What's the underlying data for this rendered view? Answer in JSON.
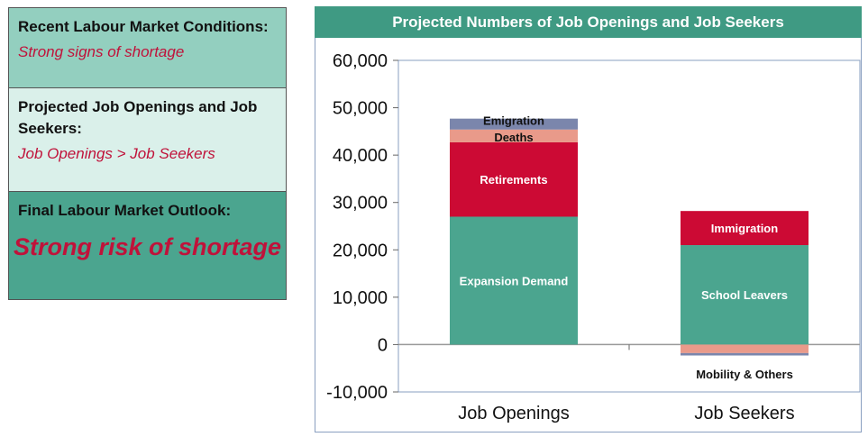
{
  "panels": {
    "recent": {
      "title": "Recent Labour Market Conditions:",
      "value": "Strong signs of shortage"
    },
    "projected": {
      "title": "Projected Job Openings and Job Seekers:",
      "value": "Job Openings > Job Seekers"
    },
    "outlook": {
      "title": "Final Labour Market Outlook:",
      "value": "Strong risk of shortage"
    }
  },
  "chart_data": {
    "type": "bar",
    "stacked": true,
    "title": "Projected Numbers of Job Openings and Job Seekers",
    "categories": [
      "Job Openings",
      "Job Seekers"
    ],
    "ylim": [
      -10000,
      60000
    ],
    "yticks": [
      -10000,
      0,
      10000,
      20000,
      30000,
      40000,
      50000,
      60000
    ],
    "ytick_labels": [
      "-10,000",
      "0",
      "10,000",
      "20,000",
      "30,000",
      "40,000",
      "50,000",
      "60,000"
    ],
    "grid": false,
    "segments": [
      {
        "category": "Job Openings",
        "label": "Expansion Demand",
        "start": 0,
        "end": 27000,
        "color": "#4ba58f",
        "label_color": "#ffffff"
      },
      {
        "category": "Job Openings",
        "label": "Retirements",
        "start": 27000,
        "end": 42700,
        "color": "#cc0a34",
        "label_color": "#ffffff"
      },
      {
        "category": "Job Openings",
        "label": "Deaths",
        "start": 42700,
        "end": 45400,
        "color": "#e99a8a",
        "label_color": "#111111"
      },
      {
        "category": "Job Openings",
        "label": "Emigration",
        "start": 45400,
        "end": 47700,
        "color": "#7b86ac",
        "label_color": "#111111"
      },
      {
        "category": "Job Seekers",
        "label": "School Leavers",
        "start": 0,
        "end": 21000,
        "color": "#4ba58f",
        "label_color": "#ffffff"
      },
      {
        "category": "Job Seekers",
        "label": "Immigration",
        "start": 21000,
        "end": 28200,
        "color": "#cc0a34",
        "label_color": "#ffffff"
      },
      {
        "category": "Job Seekers",
        "label": "Mobility & Others",
        "start": -1800,
        "end": 0,
        "color": "#e99a8a",
        "label_color": "#111111"
      },
      {
        "category": "Job Seekers",
        "label": "",
        "start": -2300,
        "end": -1800,
        "color": "#7b86ac",
        "label_color": "#111111"
      }
    ],
    "axis_color": "#999999",
    "plot_border_color": "#8a9fc0"
  }
}
